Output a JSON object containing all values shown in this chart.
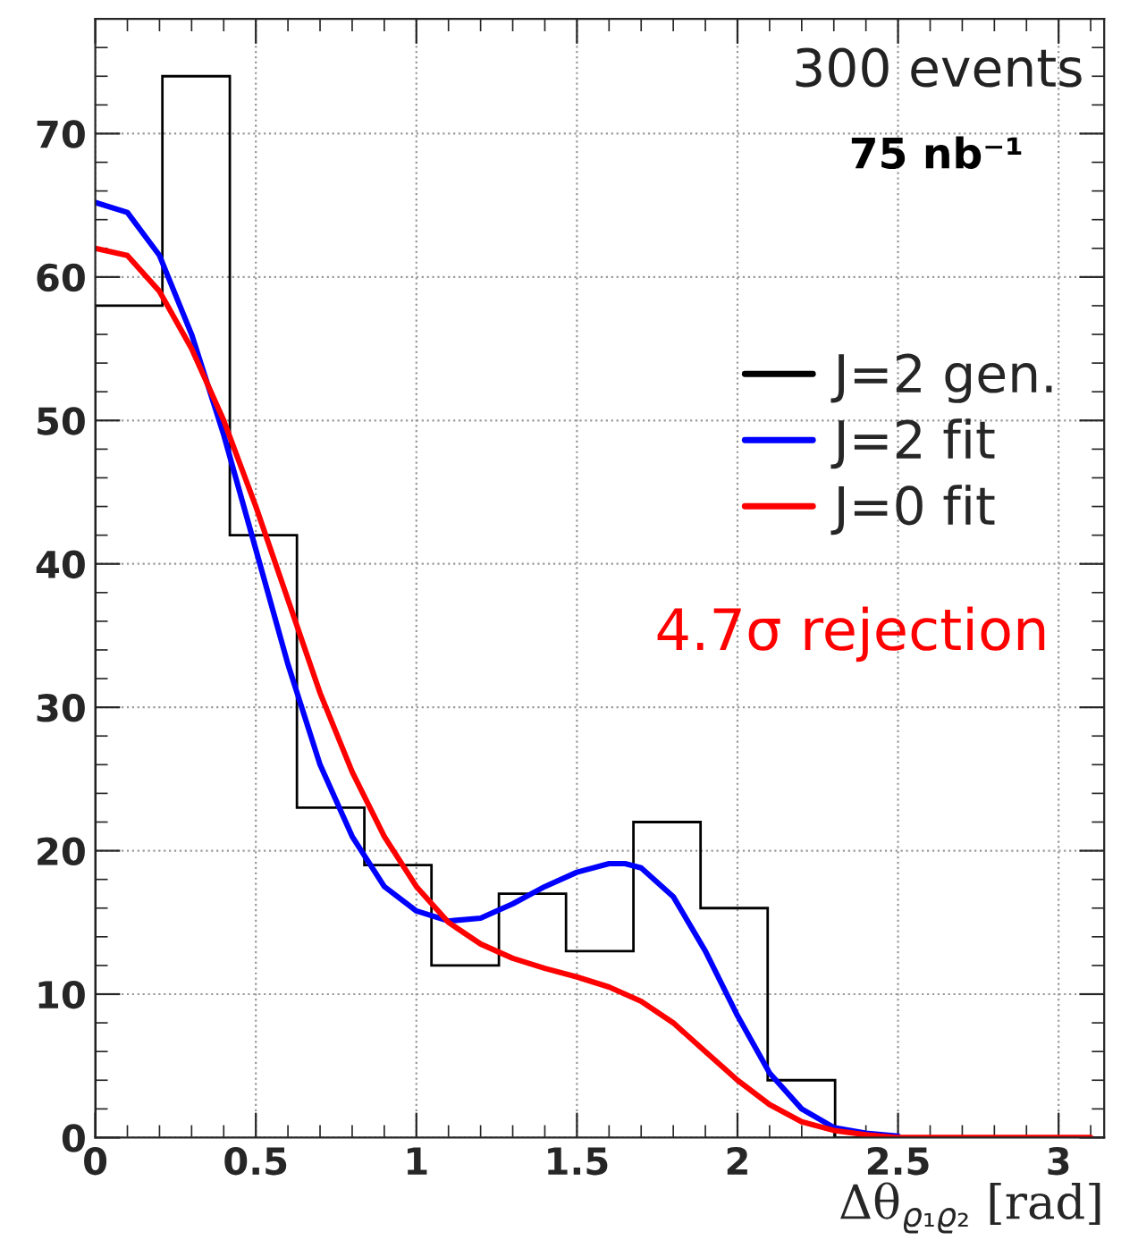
{
  "chart_data": {
    "type": "histogram",
    "xlabel": "Δθ$_{ϱ₁ϱ₂}$ [rad]",
    "bins": [
      0,
      0.209,
      0.419,
      0.628,
      0.838,
      1.047,
      1.257,
      1.466,
      1.676,
      1.885,
      2.094,
      2.304,
      2.513,
      2.723,
      2.932,
      3.142
    ],
    "series": [
      {
        "name": "J=2 gen.",
        "color": "#000000",
        "values": [
          58,
          74,
          42,
          23,
          19,
          12,
          17,
          13,
          22,
          16,
          4,
          0,
          0,
          0,
          0
        ]
      },
      {
        "name": "J=2 fit",
        "type": "line",
        "color": "#0000ff",
        "x": [
          0,
          0.1,
          0.2,
          0.3,
          0.4,
          0.5,
          0.6,
          0.7,
          0.8,
          0.9,
          1.0,
          1.1,
          1.2,
          1.3,
          1.4,
          1.5,
          1.6,
          1.65,
          1.7,
          1.8,
          1.9,
          2.0,
          2.1,
          2.2,
          2.3,
          2.4,
          2.5
        ],
        "values": [
          65.2,
          64.5,
          61.5,
          56,
          49,
          41,
          33,
          26,
          21,
          17.5,
          15.8,
          15.1,
          15.3,
          16.3,
          17.5,
          18.5,
          19.1,
          19.1,
          18.8,
          16.8,
          13,
          8.5,
          4.5,
          2,
          0.7,
          0.3,
          0.1
        ]
      },
      {
        "name": "J=0 fit",
        "type": "line",
        "color": "#ff0000",
        "x": [
          0,
          0.1,
          0.2,
          0.3,
          0.4,
          0.5,
          0.6,
          0.7,
          0.8,
          0.9,
          1.0,
          1.1,
          1.2,
          1.3,
          1.4,
          1.5,
          1.6,
          1.7,
          1.8,
          1.9,
          2.0,
          2.1,
          2.2,
          2.3,
          2.4,
          2.5,
          2.6,
          3.1
        ],
        "values": [
          62,
          61.5,
          59,
          55,
          50,
          44,
          37.5,
          31,
          25.5,
          21,
          17.5,
          15,
          13.5,
          12.5,
          11.8,
          11.2,
          10.5,
          9.5,
          8,
          6,
          4,
          2.3,
          1.1,
          0.5,
          0.2,
          0,
          0,
          0
        ]
      }
    ],
    "annotations": [
      "300 events",
      "75 nb⁻¹",
      "4.7σ rejection"
    ],
    "xlim": [
      0,
      3.142
    ],
    "ylim": [
      0,
      78
    ],
    "xticks": [
      0,
      0.5,
      1,
      1.5,
      2,
      2.5,
      3
    ],
    "yticks": [
      0,
      10,
      20,
      30,
      40,
      50,
      60,
      70
    ],
    "grid": true,
    "legend": "right",
    "line_style": "solid",
    "marker": "none"
  }
}
